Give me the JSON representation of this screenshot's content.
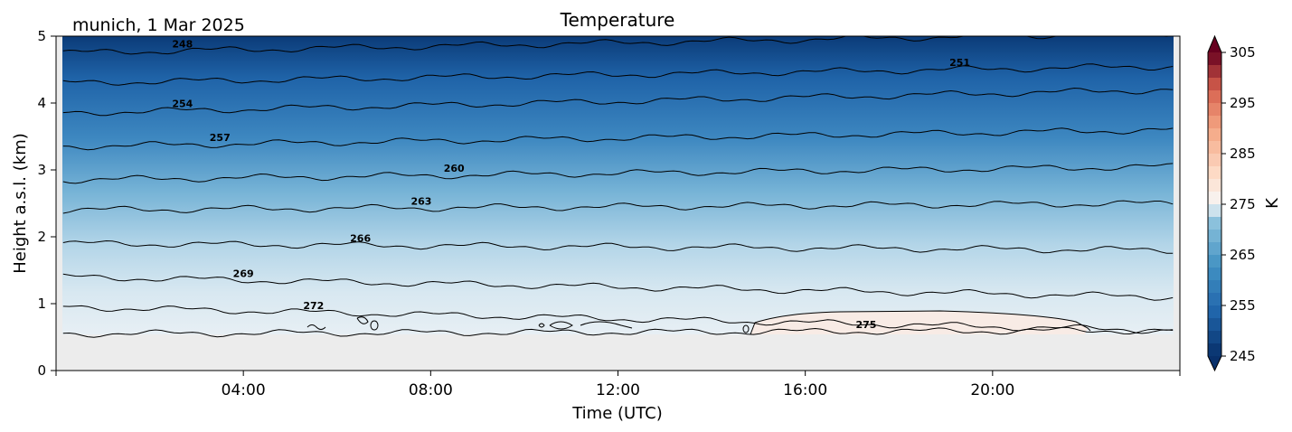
{
  "chart_data": {
    "type": "heatmap",
    "subtype": "filled-contour",
    "title": "Temperature",
    "subtitle": "munich, 1 Mar 2025",
    "xlabel": "Time (UTC)",
    "ylabel": "Height a.s.l. (km)",
    "colorbar_label": "K",
    "colormap": "RdBu_r",
    "x_unit": "hours UTC",
    "xlim": [
      0,
      24
    ],
    "ylim": [
      0,
      5
    ],
    "x_ticks": [
      4,
      8,
      12,
      16,
      20
    ],
    "x_tick_labels": [
      "04:00",
      "08:00",
      "12:00",
      "16:00",
      "20:00"
    ],
    "y_ticks": [
      0,
      1,
      2,
      3,
      4,
      5
    ],
    "y_tick_labels": [
      "0",
      "1",
      "2",
      "3",
      "4",
      "5"
    ],
    "colorbar_range": [
      245,
      305
    ],
    "colorbar_ticks": [
      245,
      255,
      265,
      275,
      285,
      295,
      305
    ],
    "colorbar_tick_labels": [
      "245",
      "255",
      "265",
      "275",
      "285",
      "295",
      "305"
    ],
    "no_data_below_km": 0.55,
    "no_data_color": "#ececec",
    "contour_lines": [
      {
        "level": 248,
        "label": "248",
        "start_height_km": 4.75,
        "end_height_km": 5.05,
        "label_x": 2.7
      },
      {
        "level": 251,
        "label": "251",
        "start_height_km": 4.3,
        "end_height_km": 4.55,
        "label_x": 19.3
      },
      {
        "level": 254,
        "label": "254",
        "start_height_km": 3.85,
        "end_height_km": 4.2,
        "label_x": 2.7
      },
      {
        "level": 257,
        "label": "257",
        "start_height_km": 3.35,
        "end_height_km": 3.6,
        "label_x": 3.5
      },
      {
        "level": 260,
        "label": "260",
        "start_height_km": 2.85,
        "end_height_km": 3.05,
        "label_x": 8.5
      },
      {
        "level": 263,
        "label": "263",
        "start_height_km": 2.4,
        "end_height_km": 2.5,
        "label_x": 7.8
      },
      {
        "level": 266,
        "label": "266",
        "start_height_km": 1.9,
        "end_height_km": 1.8,
        "label_x": 6.5
      },
      {
        "level": 269,
        "label": "269",
        "start_height_km": 1.4,
        "end_height_km": 1.1,
        "label_x": 4.0
      },
      {
        "level": 272,
        "label": "272",
        "start_height_km": 0.95,
        "end_height_km": 0.6,
        "label_x": 5.5
      },
      {
        "level": 275,
        "label": "275",
        "start_height_km": 0.55,
        "end_height_km": 0.6,
        "label_x": 17.3
      }
    ]
  }
}
